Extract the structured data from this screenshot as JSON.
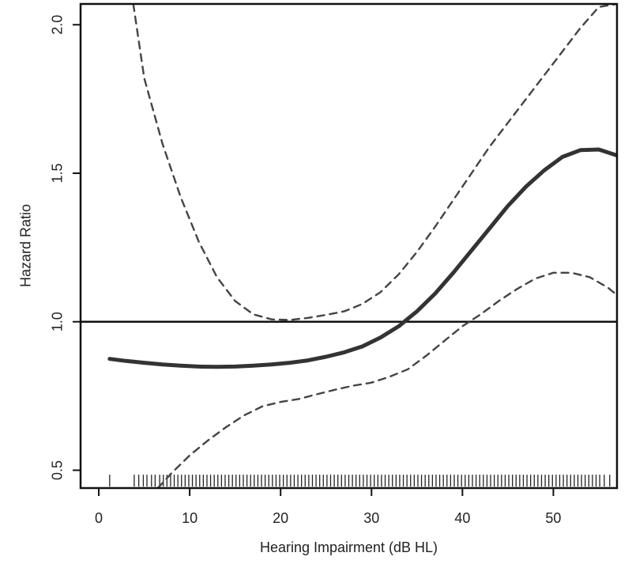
{
  "chart_data": {
    "type": "line",
    "title": "",
    "xlabel": "Hearing Impairment (dB HL)",
    "ylabel": "Hazard Ratio",
    "xlim": [
      -2,
      57
    ],
    "ylim": [
      0.44,
      2.07
    ],
    "x_ticks": [
      0,
      10,
      20,
      30,
      40,
      50
    ],
    "y_ticks": [
      0.5,
      1.0,
      1.5,
      2.0
    ],
    "x_tick_labels": [
      "0",
      "10",
      "20",
      "30",
      "40",
      "50"
    ],
    "y_tick_labels": [
      "0.5",
      "1.0",
      "1.5",
      "2.0"
    ],
    "reference_line": 1.0,
    "grid": false,
    "series": [
      {
        "style": "solid",
        "color": "#333333",
        "x": [
          1.2,
          3,
          5,
          7,
          9,
          11,
          13,
          15,
          17,
          19,
          21,
          23,
          25,
          27,
          29,
          31,
          33,
          35,
          37,
          39,
          41,
          43,
          45,
          47,
          49,
          51,
          53,
          55,
          57
        ],
        "y": [
          0.875,
          0.868,
          0.862,
          0.856,
          0.852,
          0.849,
          0.848,
          0.849,
          0.852,
          0.856,
          0.862,
          0.87,
          0.882,
          0.897,
          0.917,
          0.947,
          0.985,
          1.035,
          1.095,
          1.165,
          1.24,
          1.315,
          1.39,
          1.455,
          1.51,
          1.555,
          1.578,
          1.58,
          1.56
        ]
      },
      {
        "style": "dashed",
        "color": "#444444",
        "x": [
          3.8,
          5,
          7,
          9,
          11,
          13,
          15,
          17,
          19,
          21,
          23,
          25,
          27,
          29,
          31,
          33,
          35,
          37,
          39,
          41,
          43,
          45,
          47,
          49,
          51,
          53,
          55,
          57
        ],
        "y": [
          2.07,
          1.82,
          1.6,
          1.42,
          1.27,
          1.15,
          1.07,
          1.025,
          1.008,
          1.006,
          1.013,
          1.023,
          1.035,
          1.06,
          1.1,
          1.16,
          1.235,
          1.32,
          1.41,
          1.5,
          1.59,
          1.67,
          1.75,
          1.83,
          1.91,
          1.99,
          2.06,
          2.07
        ]
      },
      {
        "style": "dashed",
        "color": "#444444",
        "x": [
          6.5,
          8,
          10,
          12,
          14,
          16,
          18,
          20,
          22,
          24,
          26,
          28,
          30,
          32,
          34,
          36,
          38,
          40,
          42,
          44,
          46,
          48,
          50,
          52,
          54,
          56,
          57
        ],
        "y": [
          0.44,
          0.49,
          0.55,
          0.6,
          0.645,
          0.685,
          0.715,
          0.73,
          0.74,
          0.756,
          0.771,
          0.785,
          0.795,
          0.815,
          0.84,
          0.885,
          0.935,
          0.985,
          1.025,
          1.07,
          1.11,
          1.145,
          1.165,
          1.165,
          1.15,
          1.115,
          1.09
        ]
      }
    ],
    "rug": [
      1.2,
      3.9,
      4.4,
      4.9,
      5.3,
      5.8,
      6.2,
      6.7,
      7.1,
      7.5,
      7.9,
      8.3,
      8.7,
      9.1,
      9.5,
      9.9,
      10.3,
      10.7,
      11.1,
      11.5,
      11.9,
      12.3,
      12.7,
      13.1,
      13.5,
      13.9,
      14.3,
      14.7,
      15.1,
      15.5,
      15.9,
      16.3,
      16.7,
      17.1,
      17.5,
      17.9,
      18.3,
      18.7,
      19.1,
      19.5,
      19.9,
      20.3,
      20.7,
      21.1,
      21.5,
      21.9,
      22.3,
      22.7,
      23.1,
      23.5,
      23.9,
      24.3,
      24.7,
      25.1,
      25.5,
      25.9,
      26.3,
      26.7,
      27.1,
      27.5,
      27.9,
      28.3,
      28.7,
      29.1,
      29.5,
      29.9,
      30.3,
      30.7,
      31.1,
      31.5,
      31.9,
      32.3,
      32.7,
      33.1,
      33.5,
      33.9,
      34.3,
      34.7,
      35.1,
      35.5,
      35.9,
      36.3,
      36.7,
      37.1,
      37.5,
      37.9,
      38.3,
      38.7,
      39.1,
      39.5,
      39.9,
      40.3,
      40.7,
      41.1,
      41.5,
      41.9,
      42.3,
      42.7,
      43.1,
      43.5,
      43.9,
      44.3,
      44.7,
      45.1,
      45.5,
      45.9,
      46.3,
      46.7,
      47.1,
      47.5,
      47.9,
      48.3,
      48.7,
      49.1,
      49.5,
      49.9,
      50.3,
      50.7,
      51.1,
      51.5,
      51.9,
      52.3,
      52.7,
      53.1,
      53.5,
      53.9,
      54.3,
      54.7,
      55.1,
      55.6,
      56.2
    ]
  }
}
